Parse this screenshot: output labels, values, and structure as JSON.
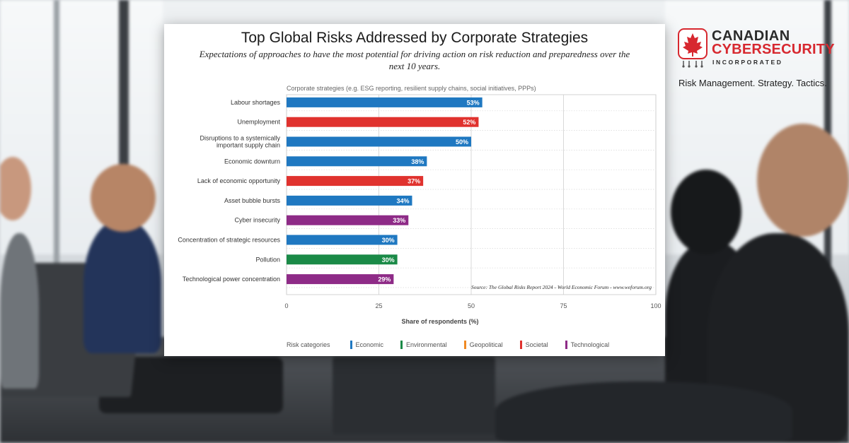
{
  "chart_data": {
    "type": "bar",
    "orientation": "horizontal",
    "title": "Top Global Risks Addressed by Corporate Strategies",
    "subtitle": "Expectations of approaches to have the most potential for driving action on risk reduction and preparedness over the next 10 years.",
    "panel_label": "Corporate strategies  (e.g. ESG reporting, resilient supply chains, social initiatives, PPPs)",
    "xlabel": "Share of respondents (%)",
    "ylabel": "",
    "xlim": [
      0,
      100
    ],
    "xticks": [
      0,
      25,
      50,
      75,
      100
    ],
    "grid": true,
    "categories": [
      [
        "Labour shortages"
      ],
      [
        "Unemployment"
      ],
      [
        "Disruptions to a systemically",
        "important supply chain"
      ],
      [
        "Economic downturn"
      ],
      [
        "Lack of economic opportunity"
      ],
      [
        "Asset bubble bursts"
      ],
      [
        "Cyber insecurity"
      ],
      [
        "Concentration of strategic resources"
      ],
      [
        "Pollution"
      ],
      [
        "Technological power concentration"
      ]
    ],
    "values": [
      53,
      52,
      50,
      38,
      37,
      34,
      33,
      30,
      30,
      29
    ],
    "value_labels": [
      "53%",
      "52%",
      "50%",
      "38%",
      "37%",
      "34%",
      "33%",
      "30%",
      "30%",
      "29%"
    ],
    "risk_category": [
      "Economic",
      "Societal",
      "Economic",
      "Economic",
      "Societal",
      "Economic",
      "Technological",
      "Economic",
      "Environmental",
      "Technological"
    ],
    "legend": {
      "title": "Risk categories",
      "position": "bottom",
      "items": [
        {
          "name": "Economic",
          "color": "#1f78c1"
        },
        {
          "name": "Environmental",
          "color": "#1a8a47"
        },
        {
          "name": "Geopolitical",
          "color": "#f08a24"
        },
        {
          "name": "Societal",
          "color": "#e0322e"
        },
        {
          "name": "Technological",
          "color": "#8e2b87"
        }
      ]
    },
    "source": "Source: The Global Risks Report 2024 - World Economic Forum - www.weforum.org"
  },
  "logo": {
    "line1": "CANADIAN",
    "line2": "CYBERSECURITY",
    "line3": "INCORPORATED",
    "tagline": "Risk Management. Strategy. Tactics.",
    "accent": "#d7282f"
  }
}
